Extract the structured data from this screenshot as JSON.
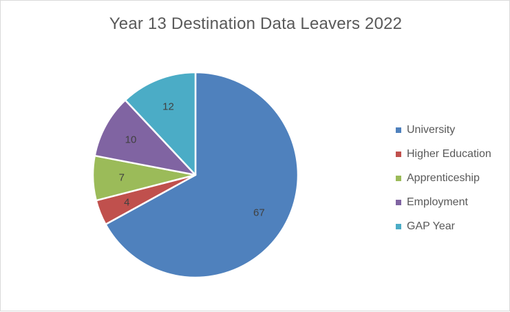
{
  "chart_data": {
    "type": "pie",
    "title": "Year 13 Destination Data Leavers 2022",
    "categories": [
      "University",
      "Higher Education",
      "Apprenticeship",
      "Employment",
      "GAP Year"
    ],
    "values": [
      67,
      4,
      7,
      10,
      12
    ],
    "colors": [
      "#4f81bd",
      "#c0504d",
      "#9bbb59",
      "#8064a2",
      "#4bacc6"
    ],
    "legend_position": "right",
    "data_labels": true
  }
}
